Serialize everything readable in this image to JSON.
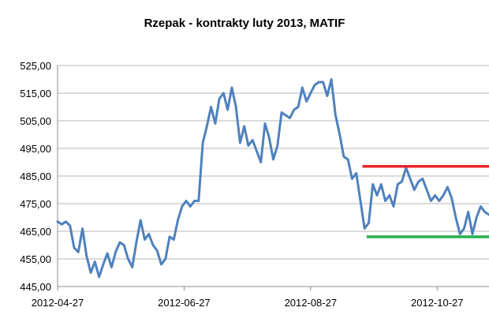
{
  "chart_data": {
    "type": "line",
    "title": "Rzepak - kontrakty luty 2013, MATIF",
    "xlabel": "",
    "ylabel": "",
    "ylim": [
      445,
      525
    ],
    "yticks": [
      "525,00",
      "515,00",
      "505,00",
      "495,00",
      "485,00",
      "475,00",
      "465,00",
      "455,00",
      "445,00"
    ],
    "ytick_values": [
      525,
      515,
      505,
      495,
      485,
      475,
      465,
      455,
      445
    ],
    "xticks": [
      "2012-04-27",
      "2012-06-27",
      "2012-08-27",
      "2012-10-27"
    ],
    "xtick_positions": [
      0,
      61,
      122,
      183
    ],
    "xlim": [
      0,
      208
    ],
    "grid": true,
    "series_color": "#4f81bd",
    "series": [
      {
        "name": "",
        "x": [
          0,
          2,
          4,
          6,
          8,
          10,
          12,
          14,
          16,
          18,
          20,
          22,
          24,
          26,
          28,
          30,
          32,
          34,
          36,
          38,
          40,
          42,
          44,
          46,
          48,
          50,
          52,
          54,
          56,
          58,
          60,
          62,
          64,
          66,
          68,
          70,
          72,
          74,
          76,
          78,
          80,
          82,
          84,
          86,
          88,
          90,
          92,
          94,
          96,
          98,
          100,
          102,
          104,
          106,
          108,
          110,
          112,
          114,
          116,
          118,
          120,
          122,
          124,
          126,
          128,
          130,
          132,
          134,
          136,
          138,
          140,
          142,
          144,
          146,
          148,
          150,
          152,
          154,
          156,
          158,
          160,
          162,
          164,
          166,
          168,
          170,
          172,
          174,
          176,
          178,
          180,
          182,
          184,
          186,
          188,
          190,
          192,
          194,
          196,
          198,
          200,
          202,
          204,
          206,
          208
        ],
        "values": [
          468.5,
          467.5,
          468.5,
          467,
          459,
          457.5,
          466,
          456,
          450,
          454,
          448.5,
          453,
          457,
          452,
          457.5,
          461,
          460,
          455,
          452,
          461,
          469,
          462,
          464,
          460,
          458,
          453,
          455,
          463,
          462,
          469,
          474,
          476,
          474,
          476,
          476,
          497,
          503,
          510,
          504,
          513,
          515,
          509,
          517,
          510,
          497,
          503,
          496,
          498,
          494,
          490,
          504,
          499,
          491,
          496,
          508,
          507,
          506,
          509,
          510,
          517,
          512,
          515,
          518,
          519,
          519,
          514,
          520,
          507,
          500,
          492,
          491,
          484,
          486,
          476,
          466,
          468,
          482,
          478,
          482,
          476,
          478,
          474,
          482,
          483,
          488,
          484,
          480,
          483,
          484,
          480,
          476,
          478,
          476,
          478,
          481,
          477,
          470,
          464,
          466,
          472,
          464,
          470,
          474,
          472,
          471
        ],
        "color": "#4f81bd"
      }
    ],
    "annotations": [
      {
        "kind": "resistance-line",
        "y": 488.5,
        "x_start": 147,
        "x_end": 208,
        "color": "#e8262a"
      },
      {
        "kind": "support-line",
        "y": 463,
        "x_start": 149,
        "x_end": 208,
        "color": "#27b14b"
      }
    ]
  }
}
